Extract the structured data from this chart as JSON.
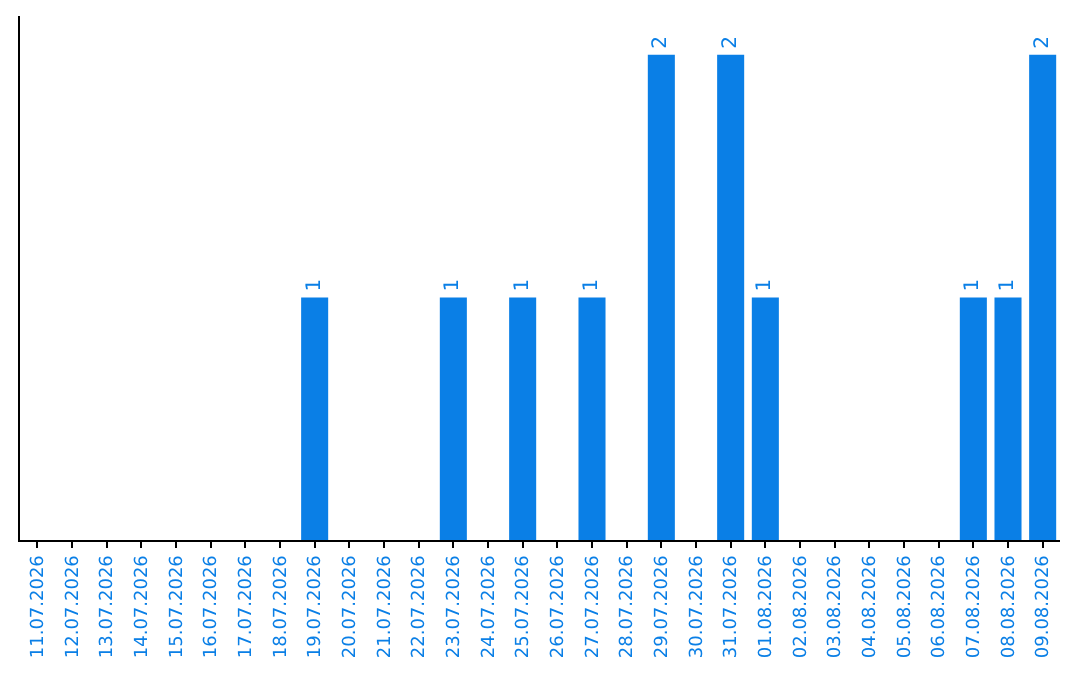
{
  "chart_data": {
    "type": "bar",
    "categories": [
      "11.07.2026",
      "12.07.2026",
      "13.07.2026",
      "14.07.2026",
      "15.07.2026",
      "16.07.2026",
      "17.07.2026",
      "18.07.2026",
      "19.07.2026",
      "20.07.2026",
      "21.07.2026",
      "22.07.2026",
      "23.07.2026",
      "24.07.2026",
      "25.07.2026",
      "26.07.2026",
      "27.07.2026",
      "28.07.2026",
      "29.07.2026",
      "30.07.2026",
      "31.07.2026",
      "01.08.2026",
      "02.08.2026",
      "03.08.2026",
      "04.08.2026",
      "05.08.2026",
      "06.08.2026",
      "07.08.2026",
      "08.08.2026",
      "09.08.2026"
    ],
    "values": [
      0,
      0,
      0,
      0,
      0,
      0,
      0,
      0,
      1,
      0,
      0,
      0,
      1,
      0,
      1,
      0,
      1,
      0,
      2,
      0,
      2,
      1,
      0,
      0,
      0,
      0,
      0,
      1,
      1,
      2
    ],
    "value_labels": [
      null,
      null,
      null,
      null,
      null,
      null,
      null,
      null,
      "1",
      null,
      null,
      null,
      "1",
      null,
      "1",
      null,
      "1",
      null,
      "2",
      null,
      "2",
      "1",
      null,
      null,
      null,
      null,
      null,
      "1",
      "1",
      "2"
    ],
    "color": "#0a7fe6",
    "tick_labels": "x",
    "legend": false
  }
}
